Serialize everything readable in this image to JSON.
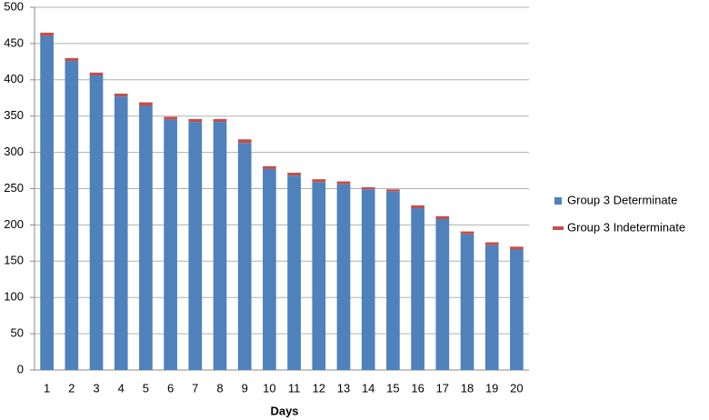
{
  "chart_data": {
    "type": "stacked_bar",
    "x_label": "Days",
    "categories": [
      "1",
      "2",
      "3",
      "4",
      "5",
      "6",
      "7",
      "8",
      "9",
      "10",
      "11",
      "12",
      "13",
      "14",
      "15",
      "16",
      "17",
      "18",
      "19",
      "20"
    ],
    "series": [
      {
        "name": "Group 3 Determinate",
        "color": "#4f81bd",
        "values": [
          460,
          426,
          406,
          377,
          364,
          345,
          342,
          342,
          313,
          277,
          268,
          259,
          256,
          249,
          246,
          223,
          208,
          187,
          172,
          166
        ]
      },
      {
        "name": "Group 3 Indeterminate",
        "color": "#c0504d",
        "values": [
          5,
          4,
          4,
          4,
          5,
          4,
          4,
          4,
          5,
          4,
          4,
          4,
          4,
          3,
          3,
          4,
          4,
          4,
          4,
          4
        ]
      }
    ],
    "ylim": [
      0,
      500
    ],
    "yticks": [
      0,
      50,
      100,
      150,
      200,
      250,
      300,
      350,
      400,
      450,
      500
    ],
    "grid": true,
    "legend": "right"
  }
}
